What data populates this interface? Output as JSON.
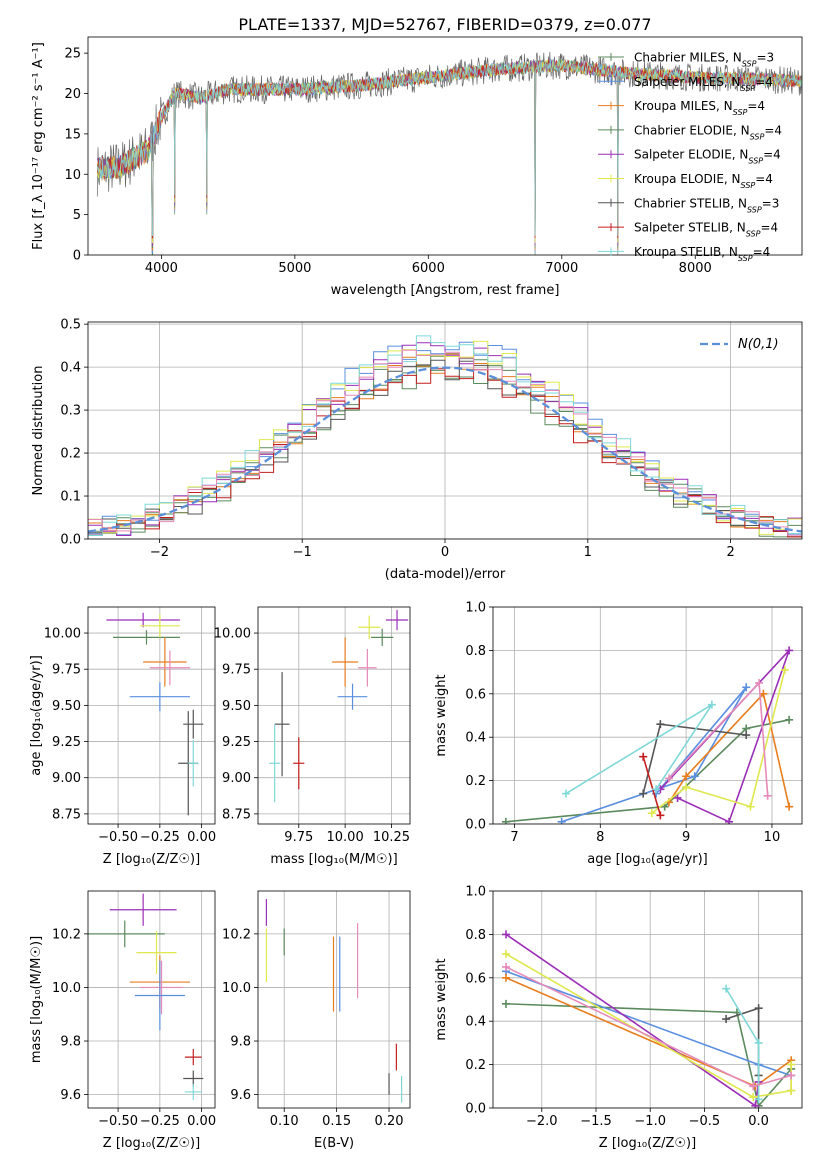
{
  "title": "PLATE=1337, MJD=52767, FIBERID=0379, z=0.077",
  "colors": {
    "Chabrier MILES": "#5b8a5d",
    "Salpeter MILES": "#5a8fe0",
    "Kroupa MILES": "#e87d1e",
    "Chabrier ELODIE": "#5b8a5d",
    "Salpeter ELODIE": "#9b2fb7",
    "Kroupa ELODIE": "#dfe84d",
    "Chabrier STELIB": "#555555",
    "Salpeter STELIB": "#c41f1f",
    "Kroupa STELIB": "#7fd8d8",
    "pink": "#e58ab9",
    "grid": "#b0b0b0"
  },
  "panels": {
    "spectrum": {
      "xlabel": "wavelength [Angstrom, rest frame]",
      "ylabel": "Flux [f_λ 10⁻¹⁷ erg cm⁻² s⁻¹ A⁻¹]",
      "xlim": [
        3450,
        8800
      ],
      "ylim": [
        0,
        27
      ],
      "xticks": [
        "4000",
        "5000",
        "6000",
        "7000",
        "8000"
      ],
      "yticks": [
        "0",
        "5",
        "10",
        "15",
        "20",
        "25"
      ],
      "legend": [
        {
          "label": "Chabrier MILES, N_SSP=3",
          "color": "#5b8a5d"
        },
        {
          "label": "Salpeter MILES, N_SSP=4",
          "color": "#5a8fe0"
        },
        {
          "label": "Kroupa MILES, N_SSP=4",
          "color": "#e87d1e"
        },
        {
          "label": "Chabrier ELODIE, N_SSP=4",
          "color": "#5b8a5d"
        },
        {
          "label": "Salpeter ELODIE, N_SSP=4",
          "color": "#9b2fb7"
        },
        {
          "label": "Kroupa ELODIE, N_SSP=4",
          "color": "#dfe84d"
        },
        {
          "label": "Chabrier STELIB, N_SSP=3",
          "color": "#555555"
        },
        {
          "label": "Salpeter STELIB, N_SSP=4",
          "color": "#c41f1f"
        },
        {
          "label": "Kroupa STELIB, N_SSP=4",
          "color": "#7fd8d8"
        }
      ],
      "continuum": [
        [
          3500,
          10.5
        ],
        [
          3700,
          11
        ],
        [
          3900,
          13
        ],
        [
          4000,
          17
        ],
        [
          4100,
          20
        ],
        [
          4300,
          19.5
        ],
        [
          4500,
          20.5
        ],
        [
          5000,
          20.5
        ],
        [
          5500,
          21
        ],
        [
          6000,
          22
        ],
        [
          6500,
          23
        ],
        [
          7000,
          23.5
        ],
        [
          7500,
          22.5
        ],
        [
          8000,
          22
        ],
        [
          8500,
          21.8
        ],
        [
          8800,
          21.5
        ]
      ],
      "spikes": [
        [
          3934,
          0
        ],
        [
          4100,
          5
        ],
        [
          4340,
          5
        ],
        [
          6800,
          0
        ],
        [
          7420,
          0
        ]
      ]
    },
    "hist": {
      "xlabel": "(data-model)/error",
      "ylabel": "Normed distribution",
      "xlim": [
        -2.5,
        2.5
      ],
      "ylim": [
        0,
        0.505
      ],
      "xticks": [
        "−2",
        "−1",
        "0",
        "1",
        "2"
      ],
      "yticks": [
        "0.0",
        "0.1",
        "0.2",
        "0.3",
        "0.4",
        "0.5"
      ],
      "legend": "N(0,1)",
      "gauss_color": "#5b8fd9"
    },
    "age_z": {
      "xlabel": "Z [log₁₀(Z/Z☉)]",
      "ylabel": "age  [log₁₀(age/yr)]",
      "xlim": [
        -0.68,
        0.08
      ],
      "ylim": [
        8.68,
        10.18
      ],
      "xticks": [
        "−0.50",
        "−0.25",
        "0.00"
      ],
      "yticks": [
        "8.75",
        "9.00",
        "9.25",
        "9.50",
        "9.75",
        "10.00"
      ],
      "points": [
        {
          "x": -0.35,
          "y": 10.09,
          "xerr": 0.22,
          "yerr": 0.05,
          "color": "#9b2fb7"
        },
        {
          "x": -0.33,
          "y": 9.97,
          "xerr": 0.2,
          "yerr": 0.05,
          "color": "#5b8a5d"
        },
        {
          "x": -0.25,
          "y": 10.05,
          "xerr": 0.12,
          "yerr": 0.08,
          "color": "#dfe84d"
        },
        {
          "x": -0.22,
          "y": 9.8,
          "xerr": 0.13,
          "yerr": 0.17,
          "color": "#e87d1e"
        },
        {
          "x": -0.19,
          "y": 9.76,
          "xerr": 0.12,
          "yerr": 0.12,
          "color": "#e58ab9"
        },
        {
          "x": -0.25,
          "y": 9.56,
          "xerr": 0.18,
          "yerr": 0.1,
          "color": "#5a8fe0"
        },
        {
          "x": -0.05,
          "y": 9.37,
          "xerr": 0.06,
          "yerr": 0.1,
          "color": "#555555"
        },
        {
          "x": -0.08,
          "y": 9.1,
          "xerr": 0.06,
          "yerr": 0.36,
          "color": "#555555"
        },
        {
          "x": -0.05,
          "y": 9.1,
          "xerr": 0.03,
          "yerr": 0.16,
          "color": "#7fd8d8"
        }
      ]
    },
    "age_mass": {
      "xlabel": "mass [log₁₀(M/M☉)]",
      "ylabel": "",
      "xlim": [
        9.53,
        10.35
      ],
      "ylim": [
        8.68,
        10.18
      ],
      "xticks": [
        "9.75",
        "10.00",
        "10.25"
      ],
      "yticks": [
        "8.75",
        "9.00",
        "9.25",
        "9.50",
        "9.75",
        "10.00"
      ],
      "points": [
        {
          "x": 10.28,
          "y": 10.09,
          "xerr": 0.06,
          "yerr": 0.07,
          "color": "#9b2fb7"
        },
        {
          "x": 10.2,
          "y": 9.97,
          "xerr": 0.06,
          "yerr": 0.06,
          "color": "#5b8a5d"
        },
        {
          "x": 10.13,
          "y": 10.04,
          "xerr": 0.06,
          "yerr": 0.08,
          "color": "#dfe84d"
        },
        {
          "x": 10.0,
          "y": 9.8,
          "xerr": 0.07,
          "yerr": 0.17,
          "color": "#e87d1e"
        },
        {
          "x": 10.12,
          "y": 9.76,
          "xerr": 0.05,
          "yerr": 0.13,
          "color": "#e58ab9"
        },
        {
          "x": 10.04,
          "y": 9.56,
          "xerr": 0.08,
          "yerr": 0.09,
          "color": "#5a8fe0"
        },
        {
          "x": 9.66,
          "y": 9.37,
          "xerr": 0.04,
          "yerr": 0.36,
          "color": "#555555"
        },
        {
          "x": 9.75,
          "y": 9.1,
          "xerr": 0.03,
          "yerr": 0.18,
          "color": "#c41f1f"
        },
        {
          "x": 9.62,
          "y": 9.1,
          "xerr": 0.03,
          "yerr": 0.27,
          "color": "#7fd8d8"
        }
      ]
    },
    "weight_age": {
      "xlabel": "age  [log₁₀(age/yr)]",
      "ylabel": "mass weight",
      "xlim": [
        6.75,
        10.35
      ],
      "ylim": [
        0,
        1.0
      ],
      "xticks": [
        "7",
        "8",
        "9",
        "10"
      ],
      "yticks": [
        "0.0",
        "0.2",
        "0.4",
        "0.6",
        "0.8",
        "1.0"
      ],
      "series": [
        {
          "name": "Chabrier MILES",
          "color": "#5b8a5d",
          "x": [
            6.9,
            8.75,
            9.7,
            10.2
          ],
          "y": [
            0.01,
            0.08,
            0.44,
            0.48
          ]
        },
        {
          "name": "Salpeter MILES",
          "color": "#5a8fe0",
          "x": [
            7.55,
            9.1,
            9.7,
            8.65
          ],
          "y": [
            0.01,
            0.22,
            0.63,
            0.14
          ]
        },
        {
          "name": "Kroupa MILES",
          "color": "#e87d1e",
          "x": [
            8.8,
            9.0,
            9.9,
            10.2
          ],
          "y": [
            0.1,
            0.22,
            0.6,
            0.08
          ]
        },
        {
          "name": "Salpeter ELODIE",
          "color": "#9b2fb7",
          "x": [
            8.9,
            9.5,
            10.2,
            8.7
          ],
          "y": [
            0.12,
            0.01,
            0.8,
            0.16
          ]
        },
        {
          "name": "Kroupa ELODIE",
          "color": "#dfe84d",
          "x": [
            8.6,
            9.0,
            9.75,
            10.15
          ],
          "y": [
            0.05,
            0.17,
            0.08,
            0.71
          ]
        },
        {
          "name": "Chabrier STELIB",
          "color": "#555555",
          "x": [
            8.5,
            8.7,
            9.7
          ],
          "y": [
            0.14,
            0.46,
            0.41
          ]
        },
        {
          "name": "Salpeter STELIB",
          "color": "#c41f1f",
          "x": [
            8.7,
            8.5
          ],
          "y": [
            0.04,
            0.31
          ]
        },
        {
          "name": "Kroupa STELIB",
          "color": "#7fd8d8",
          "x": [
            7.6,
            9.3,
            8.65
          ],
          "y": [
            0.14,
            0.55,
            0.16
          ]
        },
        {
          "name": "pink",
          "color": "#e58ab9",
          "x": [
            8.8,
            9.85,
            9.95
          ],
          "y": [
            0.21,
            0.65,
            0.13
          ]
        }
      ]
    },
    "mass_z": {
      "xlabel": "Z [log₁₀(Z/Z☉)]",
      "ylabel": "mass [log₁₀(M/M☉)]",
      "xlim": [
        -0.68,
        0.08
      ],
      "ylim": [
        9.55,
        10.36
      ],
      "xticks": [
        "−0.50",
        "−0.25",
        "0.00"
      ],
      "yticks": [
        "9.6",
        "9.8",
        "10.0",
        "10.2"
      ],
      "points": [
        {
          "x": -0.35,
          "y": 10.29,
          "xerr": 0.2,
          "yerr": 0.06,
          "color": "#9b2fb7"
        },
        {
          "x": -0.46,
          "y": 10.2,
          "xerr": 0.24,
          "yerr": 0.05,
          "color": "#5b8a5d"
        },
        {
          "x": -0.27,
          "y": 10.13,
          "xerr": 0.12,
          "yerr": 0.08,
          "color": "#dfe84d"
        },
        {
          "x": -0.25,
          "y": 10.02,
          "xerr": 0.18,
          "yerr": 0.1,
          "color": "#e87d1e"
        },
        {
          "x": -0.24,
          "y": 10.0,
          "xerr": 0.13,
          "yerr": 0.1,
          "color": "#e58ab9"
        },
        {
          "x": -0.25,
          "y": 9.97,
          "xerr": 0.15,
          "yerr": 0.13,
          "color": "#5a8fe0"
        },
        {
          "x": -0.05,
          "y": 9.74,
          "xerr": 0.05,
          "yerr": 0.03,
          "color": "#c41f1f"
        },
        {
          "x": -0.05,
          "y": 9.66,
          "xerr": 0.06,
          "yerr": 0.03,
          "color": "#555555"
        },
        {
          "x": -0.05,
          "y": 9.61,
          "xerr": 0.05,
          "yerr": 0.03,
          "color": "#7fd8d8"
        }
      ]
    },
    "mass_ebv": {
      "xlabel": "E(B-V)",
      "ylabel": "",
      "xlim": [
        0.075,
        0.22
      ],
      "ylim": [
        9.55,
        10.36
      ],
      "xticks": [
        "0.10",
        "0.15",
        "0.20"
      ],
      "yticks": [
        "9.6",
        "9.8",
        "10.0",
        "10.2"
      ],
      "points": [
        {
          "x": 0.083,
          "y": 10.28,
          "yerr": 0.05,
          "color": "#9b2fb7"
        },
        {
          "x": 0.083,
          "y": 10.12,
          "yerr": 0.1,
          "color": "#dfe84d"
        },
        {
          "x": 0.1,
          "y": 10.17,
          "yerr": 0.05,
          "color": "#5b8a5d"
        },
        {
          "x": 0.147,
          "y": 10.05,
          "yerr": 0.14,
          "color": "#e87d1e"
        },
        {
          "x": 0.153,
          "y": 10.05,
          "yerr": 0.14,
          "color": "#5a8fe0"
        },
        {
          "x": 0.17,
          "y": 10.1,
          "yerr": 0.14,
          "color": "#e58ab9"
        },
        {
          "x": 0.207,
          "y": 9.74,
          "yerr": 0.05,
          "color": "#c41f1f"
        },
        {
          "x": 0.2,
          "y": 9.64,
          "yerr": 0.04,
          "color": "#555555"
        },
        {
          "x": 0.212,
          "y": 9.62,
          "yerr": 0.05,
          "color": "#7fd8d8"
        }
      ]
    },
    "weight_z": {
      "xlabel": "Z [log₁₀(Z/Z☉)]",
      "ylabel": "mass weight",
      "xlim": [
        -2.45,
        0.4
      ],
      "ylim": [
        0,
        1.0
      ],
      "xticks": [
        "−2.0",
        "−1.5",
        "−1.0",
        "−0.5",
        "0.0"
      ],
      "yticks": [
        "0.0",
        "0.2",
        "0.4",
        "0.6",
        "0.8",
        "1.0"
      ],
      "series": [
        {
          "name": "Chabrier MILES",
          "color": "#5b8a5d",
          "x": [
            -2.33,
            -0.2,
            0.0,
            0.3
          ],
          "y": [
            0.48,
            0.44,
            0.01,
            0.18
          ]
        },
        {
          "name": "Salpeter MILES",
          "color": "#5a8fe0",
          "x": [
            -2.33,
            0.0,
            0.3
          ],
          "y": [
            0.63,
            0.2,
            0.15
          ]
        },
        {
          "name": "Kroupa MILES",
          "color": "#e87d1e",
          "x": [
            -2.33,
            -0.03,
            0.3,
            0.3
          ],
          "y": [
            0.6,
            0.1,
            0.22,
            0.08
          ]
        },
        {
          "name": "Salpeter ELODIE",
          "color": "#9b2fb7",
          "x": [
            -2.33,
            -0.03,
            0.0
          ],
          "y": [
            0.8,
            0.01,
            0.12
          ]
        },
        {
          "name": "Kroupa ELODIE",
          "color": "#dfe84d",
          "x": [
            -2.33,
            -0.05,
            0.3,
            0.3
          ],
          "y": [
            0.71,
            0.05,
            0.08,
            0.2
          ]
        },
        {
          "name": "Chabrier STELIB",
          "color": "#555555",
          "x": [
            -0.3,
            0.0,
            0.0
          ],
          "y": [
            0.41,
            0.46,
            0.15
          ]
        },
        {
          "name": "Kroupa STELIB",
          "color": "#7fd8d8",
          "x": [
            -0.3,
            0.0,
            0.0
          ],
          "y": [
            0.55,
            0.3,
            0.04
          ]
        },
        {
          "name": "pink",
          "color": "#e58ab9",
          "x": [
            -2.33,
            -0.05,
            0.3
          ],
          "y": [
            0.65,
            0.1,
            0.15
          ]
        }
      ]
    }
  }
}
